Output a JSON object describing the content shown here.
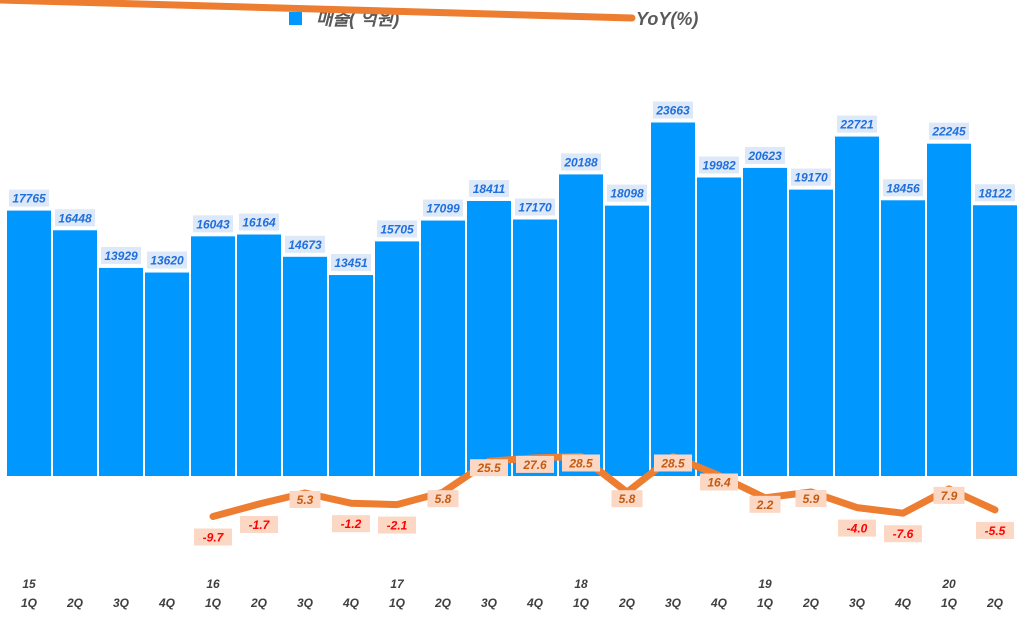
{
  "chart_data": {
    "type": "bar",
    "title": "",
    "categories": [
      "1Q",
      "2Q",
      "3Q",
      "4Q",
      "1Q",
      "2Q",
      "3Q",
      "4Q",
      "1Q",
      "2Q",
      "3Q",
      "4Q",
      "1Q",
      "2Q",
      "3Q",
      "4Q",
      "1Q",
      "2Q",
      "3Q",
      "4Q",
      "1Q",
      "2Q"
    ],
    "year_labels": [
      "15",
      "",
      "",
      "",
      "16",
      "",
      "",
      "",
      "17",
      "",
      "",
      "",
      "18",
      "",
      "",
      "",
      "19",
      "",
      "",
      "",
      "20",
      ""
    ],
    "series": [
      {
        "name": "매출( 억원)",
        "type": "bar",
        "color": "#0097ff",
        "values": [
          17765,
          16448,
          13929,
          13620,
          16043,
          16164,
          14673,
          13451,
          15705,
          17099,
          18411,
          17170,
          20188,
          18098,
          23663,
          19982,
          20623,
          19170,
          22721,
          18456,
          22245,
          18122
        ],
        "labels": [
          "17765",
          "16448",
          "13929",
          "13620",
          "16043",
          "16164",
          "14673",
          "13451",
          "15705",
          "17099",
          "18411",
          "17170",
          "20188",
          "18098",
          "23663",
          "19982",
          "20623",
          "19170",
          "22721",
          "18456",
          "22245",
          "18122"
        ]
      },
      {
        "name": "YoY(%)",
        "type": "line",
        "color": "#ed7d31",
        "values": [
          null,
          null,
          null,
          null,
          -9.7,
          -1.7,
          5.3,
          -1.2,
          -2.1,
          5.8,
          25.5,
          27.6,
          28.5,
          5.8,
          28.5,
          16.4,
          2.2,
          5.9,
          -4.0,
          -7.6,
          7.9,
          -5.5
        ],
        "labels": [
          "",
          "",
          "",
          "",
          "-9.7",
          "-1.7",
          "5.3",
          "-1.2",
          "-2.1",
          "5.8",
          "25.5",
          "27.6",
          "28.5",
          "5.8",
          "28.5",
          "16.4",
          "2.2",
          "5.9",
          "-4.0",
          "-7.6",
          "7.9",
          "-5.5"
        ],
        "positive_label_color": "#c55a11",
        "negative_label_color": "#ff0000"
      }
    ],
    "bar_ylim": [
      0,
      24500
    ],
    "line_ylim": [
      -17,
      74
    ],
    "legend": "top-center"
  }
}
